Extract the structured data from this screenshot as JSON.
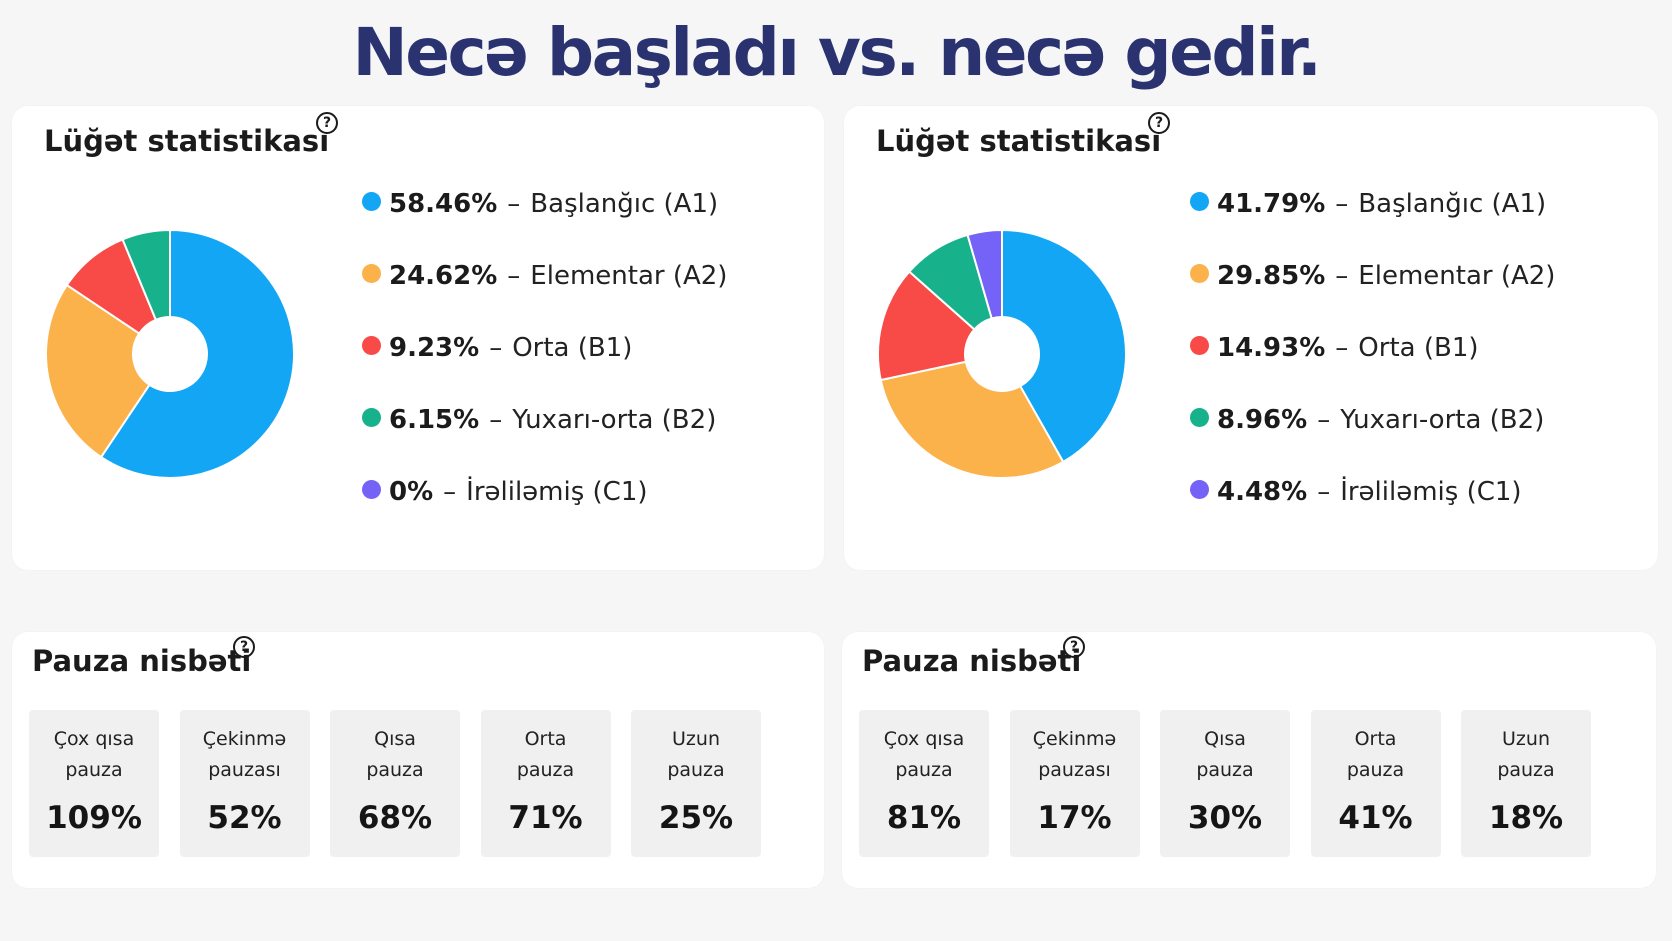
{
  "title": "Necə başladı vs. necə gedir.",
  "help_symbol": "?",
  "colors": {
    "a1": "#13a6f5",
    "a2": "#fcb24a",
    "b1": "#f84a47",
    "b2": "#17b28b",
    "c1": "#7562f6",
    "title": "#2a3370"
  },
  "chart_data": [
    {
      "type": "pie",
      "title": "Lüğət statistikası",
      "categories": [
        "Başlanğıc (A1)",
        "Elementar (A2)",
        "Orta (B1)",
        "Yuxarı-orta (B2)",
        "İrəliləmiş (C1)"
      ],
      "values": [
        58.46,
        24.62,
        9.23,
        6.15,
        0
      ],
      "labels": [
        "58.46%",
        "24.62%",
        "9.23%",
        "6.15%",
        "0%"
      ],
      "colors": [
        "#13a6f5",
        "#fcb24a",
        "#f84a47",
        "#17b28b",
        "#7562f6"
      ],
      "legend_position": "right"
    },
    {
      "type": "pie",
      "title": "Lüğət statistikası",
      "categories": [
        "Başlanğıc (A1)",
        "Elementar (A2)",
        "Orta (B1)",
        "Yuxarı-orta (B2)",
        "İrəliləmiş (C1)"
      ],
      "values": [
        41.79,
        29.85,
        14.93,
        8.96,
        4.48
      ],
      "labels": [
        "41.79%",
        "29.85%",
        "14.93%",
        "8.96%",
        "4.48%"
      ],
      "colors": [
        "#13a6f5",
        "#fcb24a",
        "#f84a47",
        "#17b28b",
        "#7562f6"
      ],
      "legend_position": "right"
    },
    {
      "type": "table",
      "title": "Pauza nisbəti",
      "categories": [
        [
          "Çox qısa",
          "pauza"
        ],
        [
          "Çekinmə",
          "pauzası"
        ],
        [
          "Qısa",
          "pauza"
        ],
        [
          "Orta",
          "pauza"
        ],
        [
          "Uzun",
          "pauza"
        ]
      ],
      "values": [
        109,
        52,
        68,
        71,
        25
      ],
      "labels": [
        "109%",
        "52%",
        "68%",
        "71%",
        "25%"
      ]
    },
    {
      "type": "table",
      "title": "Pauza nisbəti",
      "categories": [
        [
          "Çox qısa",
          "pauza"
        ],
        [
          "Çekinmə",
          "pauzası"
        ],
        [
          "Qısa",
          "pauza"
        ],
        [
          "Orta",
          "pauza"
        ],
        [
          "Uzun",
          "pauza"
        ]
      ],
      "values": [
        81,
        17,
        30,
        41,
        18
      ],
      "labels": [
        "81%",
        "17%",
        "30%",
        "41%",
        "18%"
      ]
    }
  ]
}
